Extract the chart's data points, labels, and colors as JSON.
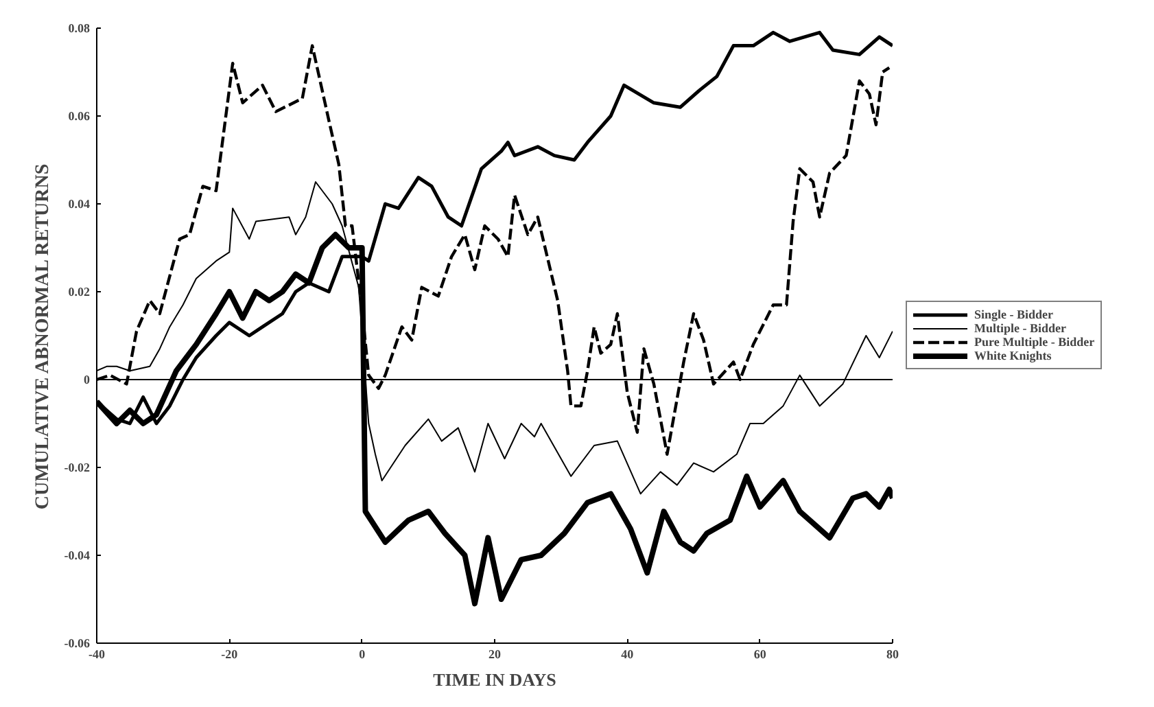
{
  "chart_data": {
    "type": "line",
    "xlabel": "TIME IN DAYS",
    "ylabel": "CUMULATIVE ABNORMAL RETURNS",
    "xlim": [
      -40,
      80
    ],
    "ylim": [
      -0.06,
      0.08
    ],
    "xticks": [
      -40,
      -20,
      0,
      20,
      40,
      60,
      80
    ],
    "yticks": [
      -0.06,
      -0.04,
      -0.02,
      0,
      0.02,
      0.04,
      0.06,
      0.08
    ],
    "grid": false,
    "legend": "right",
    "ref_lines": [
      {
        "axis": "y",
        "value": 0,
        "color": "#000000",
        "line_style": "solid"
      }
    ],
    "series": [
      {
        "name": "Single - Bidder",
        "color": "#000000",
        "line_style": "solid",
        "x": [
          -40,
          -37,
          -35,
          -33,
          -31,
          -29,
          -27,
          -25,
          -22,
          -20,
          -17,
          -15,
          -12,
          -10,
          -8,
          -5,
          -3,
          0,
          1,
          3.5,
          5.5,
          8.5,
          10.5,
          13,
          15,
          18,
          21,
          22,
          23,
          26.5,
          29,
          32,
          34,
          37.5,
          39.5,
          44,
          48,
          51,
          53.5,
          56,
          59,
          62,
          64.5,
          69,
          71,
          75,
          78,
          80
        ],
        "values": [
          -0.005,
          -0.009,
          -0.01,
          -0.004,
          -0.01,
          -0.006,
          0.0,
          0.005,
          0.01,
          0.013,
          0.01,
          0.012,
          0.015,
          0.02,
          0.022,
          0.02,
          0.028,
          0.028,
          0.027,
          0.04,
          0.039,
          0.046,
          0.044,
          0.037,
          0.035,
          0.048,
          0.052,
          0.054,
          0.051,
          0.053,
          0.051,
          0.05,
          0.054,
          0.06,
          0.067,
          0.063,
          0.062,
          0.066,
          0.069,
          0.076,
          0.076,
          0.079,
          0.077,
          0.079,
          0.075,
          0.074,
          0.078,
          0.076
        ]
      },
      {
        "name": "Multiple - Bidder",
        "color": "#000000",
        "line_style": "solid",
        "x": [
          -40,
          -38.5,
          -37,
          -35,
          -32,
          -30.5,
          -29,
          -27,
          -25,
          -22,
          -20,
          -19.5,
          -17,
          -16,
          -11,
          -10,
          -8.5,
          -7,
          -4.5,
          -3,
          -0.5,
          1,
          2,
          3,
          6.5,
          10,
          12,
          14.5,
          17,
          19,
          21.5,
          24,
          26,
          27,
          31.5,
          35,
          38.5,
          42,
          45,
          47.5,
          50,
          53,
          56.5,
          58.5,
          60.5,
          63.5,
          66,
          69,
          72.5,
          76,
          78,
          80
        ],
        "values": [
          0.002,
          0.003,
          0.003,
          0.002,
          0.003,
          0.007,
          0.012,
          0.017,
          0.023,
          0.027,
          0.029,
          0.039,
          0.032,
          0.036,
          0.037,
          0.033,
          0.037,
          0.045,
          0.04,
          0.035,
          0.021,
          -0.01,
          -0.017,
          -0.023,
          -0.015,
          -0.009,
          -0.014,
          -0.011,
          -0.021,
          -0.01,
          -0.018,
          -0.01,
          -0.013,
          -0.01,
          -0.022,
          -0.015,
          -0.014,
          -0.026,
          -0.021,
          -0.024,
          -0.019,
          -0.021,
          -0.017,
          -0.01,
          -0.01,
          -0.006,
          0.001,
          -0.006,
          -0.001,
          0.01,
          0.005,
          0.011
        ]
      },
      {
        "name": "Pure Multiple - Bidder",
        "color": "#000000",
        "line_style": "dashed",
        "x": [
          -40,
          -38,
          -35.5,
          -34,
          -32,
          -30.5,
          -27.5,
          -26,
          -24,
          -22,
          -19.5,
          -18,
          -15,
          -13,
          -9,
          -7.5,
          -5,
          -3.5,
          -2.5,
          -1.5,
          0,
          1,
          2.5,
          3.5,
          6,
          7.5,
          9,
          11.5,
          13.5,
          15.5,
          17,
          18.5,
          20.5,
          22,
          23,
          25,
          26.5,
          29.5,
          31,
          31.5,
          33,
          34,
          35,
          36,
          37.5,
          38.5,
          40,
          41.5,
          42.5,
          44,
          46,
          48.5,
          50,
          51.5,
          53,
          56,
          57,
          59,
          62,
          64,
          65,
          66,
          68,
          69,
          70.5,
          73,
          75,
          76.5,
          77.5,
          78.5,
          79.5
        ],
        "values": [
          0.0,
          0.001,
          -0.001,
          0.011,
          0.018,
          0.015,
          0.032,
          0.033,
          0.044,
          0.043,
          0.072,
          0.063,
          0.067,
          0.061,
          0.064,
          0.076,
          0.059,
          0.049,
          0.035,
          0.035,
          0.016,
          0.001,
          -0.002,
          0.001,
          0.012,
          0.009,
          0.021,
          0.019,
          0.028,
          0.033,
          0.025,
          0.035,
          0.032,
          0.028,
          0.042,
          0.033,
          0.037,
          0.018,
          0.002,
          -0.006,
          -0.006,
          0.002,
          0.012,
          0.006,
          0.008,
          0.015,
          -0.003,
          -0.012,
          0.007,
          -0.001,
          -0.017,
          0.004,
          0.015,
          0.009,
          -0.001,
          0.004,
          0.0,
          0.008,
          0.017,
          0.017,
          0.036,
          0.048,
          0.045,
          0.037,
          0.047,
          0.051,
          0.068,
          0.065,
          0.058,
          0.07,
          0.071
        ]
      },
      {
        "name": "White Knights",
        "color": "#000000",
        "line_style": "solid",
        "x": [
          -40,
          -37,
          -35,
          -33,
          -31,
          -28,
          -25,
          -22,
          -20,
          -18,
          -16,
          -14,
          -12,
          -10,
          -8,
          -6,
          -4,
          -2,
          0,
          0.5,
          3.5,
          7,
          10,
          12.5,
          15.5,
          17,
          19,
          21,
          24,
          27,
          30.5,
          34,
          37.5,
          40.5,
          43,
          45.5,
          48,
          50,
          52,
          55.5,
          58,
          60,
          63.5,
          66,
          70.5,
          74,
          76,
          78,
          79.5,
          80
        ],
        "values": [
          -0.005,
          -0.01,
          -0.007,
          -0.01,
          -0.008,
          0.002,
          0.008,
          0.015,
          0.02,
          0.014,
          0.02,
          0.018,
          0.02,
          0.024,
          0.022,
          0.03,
          0.033,
          0.03,
          0.03,
          -0.03,
          -0.037,
          -0.032,
          -0.03,
          -0.035,
          -0.04,
          -0.051,
          -0.036,
          -0.05,
          -0.041,
          -0.04,
          -0.035,
          -0.028,
          -0.026,
          -0.034,
          -0.044,
          -0.03,
          -0.037,
          -0.039,
          -0.035,
          -0.032,
          -0.022,
          -0.029,
          -0.023,
          -0.03,
          -0.036,
          -0.027,
          -0.026,
          -0.029,
          -0.025,
          -0.027
        ]
      }
    ]
  }
}
